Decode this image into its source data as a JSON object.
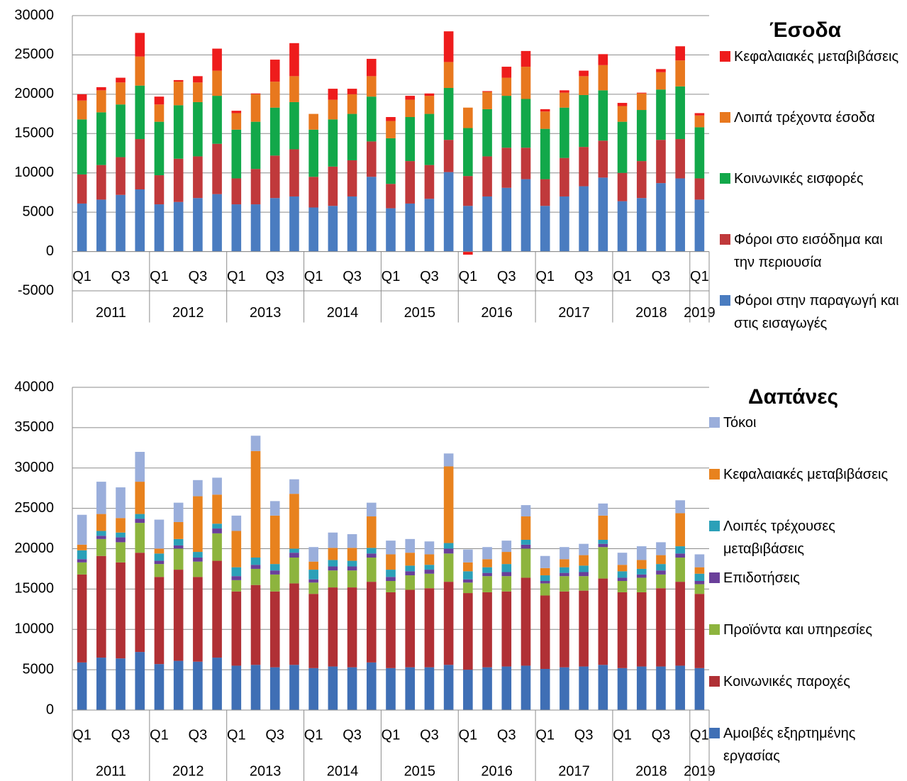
{
  "chart_data": [
    {
      "type": "bar",
      "stacked": true,
      "title": "Έσοδα",
      "categories": [
        "Q1",
        null,
        "Q3",
        null,
        "Q1",
        null,
        "Q3",
        null,
        "Q1",
        null,
        "Q3",
        null,
        "Q1",
        null,
        "Q3",
        null,
        "Q1",
        null,
        "Q3",
        null,
        "Q1",
        null,
        "Q3",
        null,
        "Q1",
        null,
        "Q3",
        null,
        "Q1",
        null,
        "Q3",
        null,
        "Q1"
      ],
      "year_groups": [
        "2011",
        "2012",
        "2013",
        "2014",
        "2015",
        "2016",
        "2017",
        "2018",
        "2019"
      ],
      "ylim": [
        -5000,
        30000
      ],
      "yticks": [
        -5000,
        0,
        5000,
        10000,
        15000,
        20000,
        25000,
        30000
      ],
      "grid": true,
      "legend": "right",
      "series": [
        {
          "name": "Φόροι στην παραγωγή και στις εισαγωγές",
          "color": "#4a7cc0",
          "values": [
            6100,
            6600,
            7200,
            7900,
            6000,
            6300,
            6800,
            7300,
            6000,
            6000,
            6800,
            7000,
            5600,
            5800,
            7000,
            9500,
            5500,
            6100,
            6700,
            10100,
            5800,
            7000,
            8100,
            9200,
            5800,
            7000,
            8300,
            9400,
            6400,
            6800,
            8700,
            9300,
            6600
          ]
        },
        {
          "name": "Φόροι στο εισόδημα και την περιουσία",
          "color": "#c0393b",
          "values": [
            3700,
            4400,
            4800,
            6400,
            3700,
            5500,
            5300,
            6400,
            3300,
            4500,
            5400,
            6000,
            3900,
            5000,
            4600,
            4500,
            3100,
            5400,
            4300,
            4100,
            3800,
            5100,
            5100,
            4000,
            3400,
            4900,
            5000,
            4700,
            3600,
            4700,
            5500,
            5000,
            2700
          ]
        },
        {
          "name": "Κοινωνικές εισφορές",
          "color": "#12a84a",
          "values": [
            7000,
            6700,
            6700,
            6800,
            6800,
            6800,
            6900,
            6100,
            6200,
            6000,
            6100,
            6000,
            6000,
            6000,
            5900,
            5700,
            5800,
            5600,
            6500,
            6600,
            6100,
            6000,
            6600,
            6200,
            6400,
            6400,
            6600,
            6400,
            6500,
            6500,
            6400,
            6700,
            6500
          ]
        },
        {
          "name": "Λοιπά τρέχοντα έσοδα",
          "color": "#e8781e",
          "values": [
            2400,
            2800,
            2800,
            3700,
            2200,
            3000,
            2500,
            3200,
            2100,
            3500,
            3300,
            3300,
            2000,
            2500,
            2500,
            2600,
            2200,
            2200,
            2300,
            3300,
            2600,
            2200,
            2300,
            4100,
            2200,
            1900,
            2400,
            3200,
            2000,
            2100,
            2200,
            3300,
            1500
          ]
        },
        {
          "name": "Κεφαλαιακές μεταβιβάσεις",
          "color": "#ee1c1c",
          "values": [
            800,
            400,
            600,
            3000,
            1000,
            200,
            800,
            2800,
            300,
            100,
            2800,
            4200,
            0,
            1400,
            700,
            2200,
            500,
            500,
            300,
            3900,
            -400,
            100,
            1400,
            2000,
            300,
            300,
            700,
            1400,
            400,
            100,
            400,
            1800,
            300
          ]
        }
      ]
    },
    {
      "type": "bar",
      "stacked": true,
      "title": "Δαπάνες",
      "categories": [
        "Q1",
        null,
        "Q3",
        null,
        "Q1",
        null,
        "Q3",
        null,
        "Q1",
        null,
        "Q3",
        null,
        "Q1",
        null,
        "Q3",
        null,
        "Q1",
        null,
        "Q3",
        null,
        "Q1",
        null,
        "Q3",
        null,
        "Q1",
        null,
        "Q3",
        null,
        "Q1",
        null,
        "Q3",
        null,
        "Q1"
      ],
      "year_groups": [
        "2011",
        "2012",
        "2013",
        "2014",
        "2015",
        "2016",
        "2017",
        "2018",
        "2019"
      ],
      "ylim": [
        0,
        40000
      ],
      "yticks": [
        0,
        5000,
        10000,
        15000,
        20000,
        25000,
        30000,
        35000,
        40000
      ],
      "grid": true,
      "legend": "right",
      "series": [
        {
          "name": "Αμοιβές εξηρτημένης εργασίας",
          "color": "#3f6fb5",
          "values": [
            5900,
            6500,
            6400,
            7200,
            5700,
            6100,
            6000,
            6500,
            5500,
            5600,
            5300,
            5600,
            5200,
            5400,
            5300,
            5900,
            5200,
            5300,
            5300,
            5600,
            5000,
            5300,
            5400,
            5500,
            5100,
            5300,
            5400,
            5600,
            5200,
            5400,
            5400,
            5500,
            5200
          ]
        },
        {
          "name": "Κοινωνικές παροχές",
          "color": "#b03035",
          "values": [
            10900,
            12600,
            11900,
            12300,
            10800,
            11300,
            10500,
            12000,
            9200,
            9900,
            9400,
            10100,
            9200,
            9800,
            9900,
            10000,
            9400,
            9600,
            9800,
            10300,
            9500,
            9300,
            9300,
            10900,
            9100,
            9400,
            9400,
            10700,
            9400,
            9200,
            9700,
            10400,
            9200
          ]
        },
        {
          "name": "Προϊόντα και υπηρεσίες",
          "color": "#8db43e",
          "values": [
            1500,
            2100,
            2500,
            3700,
            1600,
            2600,
            1900,
            3400,
            1400,
            2000,
            2100,
            3200,
            1400,
            2100,
            2100,
            3000,
            1400,
            1800,
            1800,
            3500,
            1300,
            2000,
            1900,
            3600,
            1500,
            1900,
            1800,
            3900,
            1400,
            1800,
            1700,
            3000,
            1200
          ]
        },
        {
          "name": "Επιδοτήσεις",
          "color": "#6a3f9a",
          "values": [
            400,
            400,
            600,
            500,
            400,
            400,
            500,
            600,
            500,
            500,
            500,
            600,
            400,
            500,
            500,
            500,
            500,
            500,
            500,
            600,
            400,
            400,
            500,
            500,
            300,
            400,
            500,
            400,
            400,
            400,
            500,
            500,
            400
          ]
        },
        {
          "name": "Λοιπές τρέχουσες μεταβιβάσεις",
          "color": "#2ba0b8",
          "values": [
            1100,
            600,
            600,
            600,
            900,
            800,
            700,
            600,
            1100,
            900,
            800,
            500,
            1200,
            800,
            700,
            700,
            900,
            700,
            600,
            700,
            1000,
            700,
            1000,
            600,
            700,
            700,
            800,
            500,
            800,
            700,
            800,
            900,
            900
          ]
        },
        {
          "name": "Κεφαλαιακές μεταβιβάσεις",
          "color": "#e8821e",
          "values": [
            700,
            2100,
            1800,
            4000,
            600,
            2100,
            6900,
            3600,
            4500,
            13200,
            6000,
            6800,
            1000,
            1500,
            1600,
            3900,
            1900,
            1600,
            1300,
            9500,
            1100,
            1000,
            1500,
            2900,
            900,
            1000,
            1300,
            3000,
            800,
            1100,
            1100,
            4100,
            800
          ]
        },
        {
          "name": "Τόκοι",
          "color": "#9aaedb",
          "values": [
            3700,
            4000,
            3800,
            3700,
            3600,
            2400,
            2000,
            2100,
            1900,
            1900,
            1800,
            1800,
            1800,
            1900,
            1700,
            1700,
            1700,
            1700,
            1600,
            1600,
            1600,
            1500,
            1400,
            1400,
            1500,
            1500,
            1400,
            1500,
            1500,
            1700,
            1600,
            1600,
            1600
          ]
        }
      ]
    }
  ]
}
